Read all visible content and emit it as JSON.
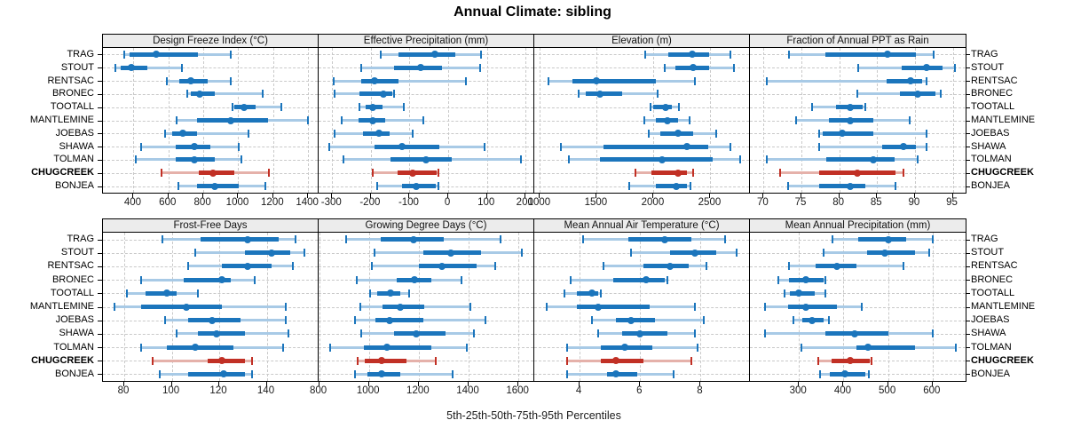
{
  "chart_data": {
    "type": "dotplot",
    "title": "Annual Climate: sibling",
    "caption": "5th-25th-50th-75th-95th Percentiles",
    "percentiles": [
      5,
      25,
      50,
      75,
      95
    ],
    "legend_position": "none",
    "grid": "dashed",
    "sites": [
      "TRAG",
      "STOUT",
      "RENTSAC",
      "BRONEC",
      "TOOTALL",
      "MANTLEMINE",
      "JOEBAS",
      "SHAWA",
      "TOLMAN",
      "CHUGCREEK",
      "BONJEA"
    ],
    "highlight_site": "CHUGCREEK",
    "colors": {
      "series_blue": "#1b75bc",
      "series_blue_light": "#a8cae6",
      "highlight_red": "#c13025",
      "highlight_red_light": "#e5b1aa",
      "strip_bg": "#ececec",
      "grid_gray": "#c9c9c9"
    },
    "panels": [
      {
        "title": "Design Freeze Index (°C)",
        "ticks": [
          400,
          600,
          800,
          1000,
          1200,
          1400
        ],
        "domain": [
          225,
          1455
        ],
        "values": [
          [
            345,
            380,
            530,
            770,
            958
          ],
          [
            297,
            326,
            386,
            481,
            675
          ],
          [
            592,
            661,
            730,
            824,
            958
          ],
          [
            708,
            730,
            781,
            867,
            1139
          ],
          [
            967,
            979,
            1034,
            1099,
            1245
          ],
          [
            647,
            764,
            958,
            1168,
            1400
          ],
          [
            579,
            623,
            683,
            764,
            1061
          ],
          [
            443,
            644,
            747,
            841,
            1001
          ],
          [
            415,
            641,
            750,
            867,
            1018
          ],
          [
            558,
            773,
            854,
            979,
            1177
          ],
          [
            658,
            764,
            867,
            1005,
            1156
          ]
        ]
      },
      {
        "title": "Effective Precipitation (mm)",
        "ticks": [
          -300,
          -200,
          -100,
          0,
          100,
          200
        ],
        "domain": [
          -335,
          220
        ],
        "values": [
          [
            -175,
            -128,
            -34,
            18,
            84
          ],
          [
            -224,
            -140,
            -72,
            -16,
            82
          ],
          [
            -295,
            -224,
            -191,
            -128,
            45
          ],
          [
            -293,
            -230,
            -168,
            -145,
            -140
          ],
          [
            -229,
            -214,
            -195,
            -170,
            -114
          ],
          [
            -275,
            -232,
            -195,
            -164,
            -65
          ],
          [
            -293,
            -220,
            -180,
            -151,
            -93
          ],
          [
            -307,
            -190,
            -120,
            -24,
            95
          ],
          [
            -270,
            -150,
            -58,
            10,
            188
          ],
          [
            -195,
            -130,
            -91,
            -30,
            -25
          ],
          [
            -183,
            -120,
            -83,
            -32,
            -26
          ]
        ]
      },
      {
        "title": "Elevation (m)",
        "ticks": [
          1000,
          1500,
          2000,
          2500
        ],
        "domain": [
          950,
          2840
        ],
        "values": [
          [
            1927,
            2127,
            2342,
            2490,
            2679
          ],
          [
            2100,
            2192,
            2347,
            2490,
            2705
          ],
          [
            1078,
            1285,
            1497,
            2023,
            2360
          ],
          [
            1340,
            1402,
            1531,
            1725,
            2036
          ],
          [
            1971,
            1997,
            2109,
            2160,
            2223
          ],
          [
            1920,
            2023,
            2122,
            2217,
            2316
          ],
          [
            1959,
            2062,
            2212,
            2347,
            2554
          ],
          [
            1181,
            1557,
            2290,
            2477,
            2679
          ],
          [
            1254,
            1531,
            2075,
            2516,
            2762
          ],
          [
            1842,
            1984,
            2218,
            2296,
            2347
          ],
          [
            1782,
            2023,
            2197,
            2290,
            2321
          ]
        ]
      },
      {
        "title": "Fraction of Annual PPT as Rain",
        "ticks": [
          70,
          75,
          80,
          85,
          90,
          95
        ],
        "domain": [
          68.2,
          96.7
        ],
        "values": [
          [
            73.4,
            78.2,
            86.4,
            90.1,
            92.5
          ],
          [
            82.5,
            88.2,
            91.5,
            93.6,
            95.3
          ],
          [
            70.4,
            86.3,
            89.4,
            90.9,
            91.5
          ],
          [
            82.4,
            88.0,
            90.4,
            92.7,
            93.4
          ],
          [
            76.4,
            79.6,
            81.5,
            83.1,
            83.4
          ],
          [
            74.3,
            78.6,
            81.4,
            84.5,
            89.3
          ],
          [
            77.4,
            77.8,
            80.4,
            84.5,
            91.5
          ],
          [
            77.4,
            85.7,
            88.5,
            90.1,
            91.5
          ],
          [
            70.4,
            78.3,
            84.5,
            87.3,
            90.4
          ],
          [
            72.2,
            77.4,
            82.4,
            87.4,
            88.5
          ],
          [
            73.3,
            77.4,
            81.4,
            83.5,
            87.4
          ]
        ]
      },
      {
        "title": "Frost-Free Days",
        "ticks": [
          80,
          100,
          120,
          140
        ],
        "domain": [
          71,
          161.5
        ],
        "values": [
          [
            96,
            112,
            132,
            145,
            152
          ],
          [
            110,
            131,
            142,
            150,
            156
          ],
          [
            107,
            121,
            132,
            142,
            151
          ],
          [
            87,
            105,
            121,
            125,
            135
          ],
          [
            81,
            89,
            98,
            102,
            111
          ],
          [
            76,
            87,
            106,
            121,
            148
          ],
          [
            97,
            107,
            117,
            129,
            148
          ],
          [
            102,
            111,
            119,
            131,
            149
          ],
          [
            87,
            98,
            110,
            126,
            147
          ],
          [
            92,
            115,
            121,
            131,
            134
          ],
          [
            95,
            107,
            122,
            131,
            134
          ]
        ]
      },
      {
        "title": "Growing Degree Days (°C)",
        "ticks": [
          800,
          1000,
          1200,
          1400,
          1600
        ],
        "domain": [
          798,
          1660
        ],
        "values": [
          [
            908,
            1047,
            1180,
            1300,
            1529
          ],
          [
            1024,
            1219,
            1330,
            1449,
            1612
          ],
          [
            1012,
            1199,
            1294,
            1431,
            1508
          ],
          [
            952,
            1110,
            1181,
            1252,
            1371
          ],
          [
            1005,
            1032,
            1086,
            1127,
            1160
          ],
          [
            964,
            1056,
            1127,
            1223,
            1407
          ],
          [
            945,
            1026,
            1083,
            1217,
            1469
          ],
          [
            969,
            1100,
            1190,
            1306,
            1421
          ],
          [
            845,
            979,
            1074,
            1252,
            1393
          ],
          [
            955,
            985,
            1052,
            1151,
            1267
          ],
          [
            945,
            993,
            1052,
            1127,
            1336
          ]
        ]
      },
      {
        "title": "Mean Annual Air Temperature (°C)",
        "ticks": [
          4,
          6,
          8
        ],
        "domain": [
          2.5,
          9.6
        ],
        "values": [
          [
            4.1,
            5.6,
            6.8,
            7.7,
            8.8
          ],
          [
            5.7,
            7.0,
            7.8,
            8.5,
            9.2
          ],
          [
            4.8,
            6.1,
            7.0,
            7.6,
            8.2
          ],
          [
            3.7,
            5.1,
            6.2,
            6.8,
            6.9
          ],
          [
            3.5,
            3.9,
            4.4,
            4.6,
            4.7
          ],
          [
            2.9,
            3.9,
            4.6,
            6.3,
            7.8
          ],
          [
            4.4,
            5.2,
            5.7,
            6.5,
            8.1
          ],
          [
            4.6,
            5.4,
            6.0,
            6.9,
            7.8
          ],
          [
            3.6,
            4.7,
            5.5,
            6.4,
            7.9
          ],
          [
            3.6,
            4.7,
            5.2,
            6.1,
            7.7
          ],
          [
            3.6,
            4.9,
            5.2,
            5.9,
            7.1
          ]
        ]
      },
      {
        "title": "Mean Annual Precipitation (mm)",
        "ticks": [
          300,
          400,
          500,
          600
        ],
        "domain": [
          190,
          674
        ],
        "values": [
          [
            376,
            433,
            500,
            540,
            601
          ],
          [
            355,
            453,
            493,
            561,
            593
          ],
          [
            278,
            338,
            385,
            429,
            535
          ],
          [
            253,
            278,
            316,
            356,
            360
          ],
          [
            267,
            280,
            300,
            336,
            360
          ],
          [
            223,
            275,
            316,
            385,
            441
          ],
          [
            287,
            307,
            329,
            355,
            367
          ],
          [
            223,
            360,
            425,
            500,
            600
          ],
          [
            305,
            429,
            455,
            560,
            653
          ],
          [
            343,
            373,
            416,
            458,
            463
          ],
          [
            348,
            369,
            403,
            448,
            456
          ]
        ]
      }
    ]
  }
}
